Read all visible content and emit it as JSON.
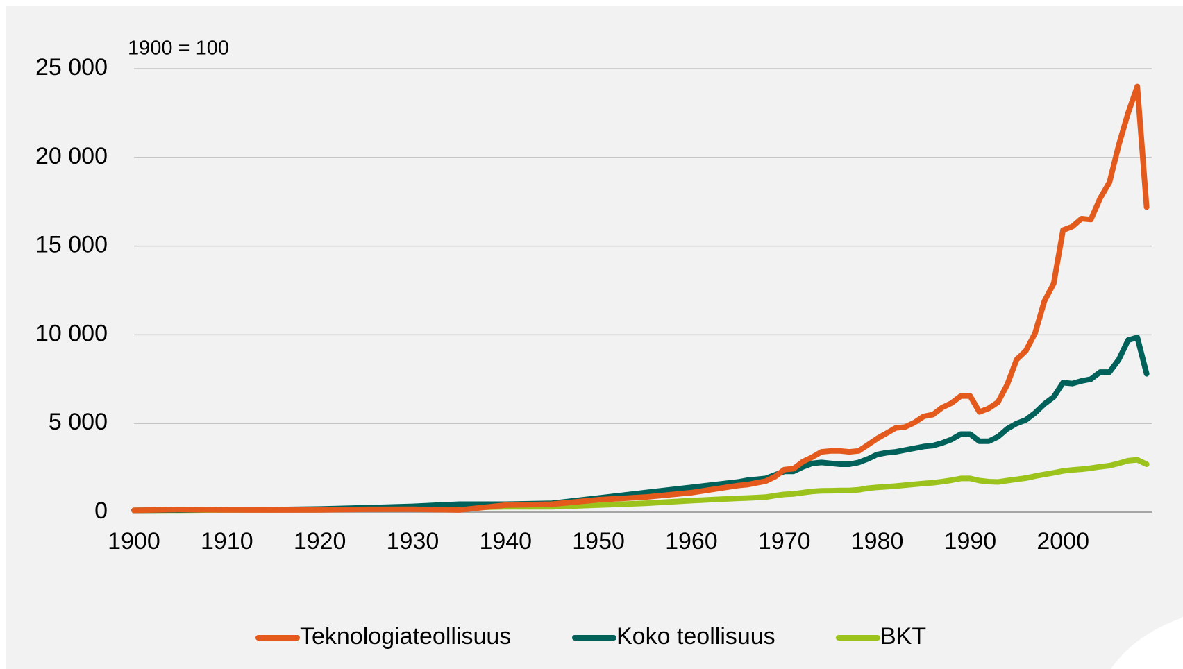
{
  "chart_data": {
    "type": "line",
    "annotation": "1900 = 100",
    "x": [
      1900,
      1905,
      1910,
      1915,
      1920,
      1925,
      1930,
      1935,
      1940,
      1945,
      1950,
      1955,
      1960,
      1965,
      1966,
      1967,
      1968,
      1969,
      1970,
      1971,
      1972,
      1973,
      1974,
      1975,
      1976,
      1977,
      1978,
      1979,
      1980,
      1981,
      1982,
      1983,
      1984,
      1985,
      1986,
      1987,
      1988,
      1989,
      1990,
      1991,
      1992,
      1993,
      1994,
      1995,
      1996,
      1997,
      1998,
      1999,
      2000,
      2001,
      2002,
      2003,
      2004,
      2005,
      2006,
      2007,
      2008,
      2009
    ],
    "series": [
      {
        "name": "Teknologiateollisuus",
        "color": "#e35a1c",
        "values": [
          100,
          150,
          130,
          120,
          130,
          160,
          170,
          120,
          400,
          450,
          700,
          850,
          1100,
          1500,
          1550,
          1650,
          1750,
          2000,
          2400,
          2450,
          2850,
          3100,
          3400,
          3450,
          3450,
          3400,
          3450,
          3800,
          4150,
          4450,
          4750,
          4800,
          5050,
          5400,
          5500,
          5900,
          6150,
          6550,
          6550,
          5650,
          5850,
          6200,
          7200,
          8600,
          9100,
          10100,
          11900,
          12900,
          15900,
          16100,
          16550,
          16500,
          17700,
          18600,
          20700,
          22500,
          24000,
          17200
        ]
      },
      {
        "name": "Koko teollisuus",
        "color": "#00605a",
        "values": [
          100,
          120,
          150,
          150,
          180,
          250,
          330,
          450,
          450,
          500,
          800,
          1100,
          1400,
          1700,
          1800,
          1850,
          1900,
          2100,
          2300,
          2300,
          2550,
          2750,
          2800,
          2750,
          2700,
          2700,
          2800,
          3000,
          3250,
          3350,
          3400,
          3500,
          3600,
          3700,
          3750,
          3900,
          4100,
          4400,
          4400,
          4000,
          4000,
          4250,
          4700,
          5000,
          5200,
          5600,
          6100,
          6500,
          7300,
          7250,
          7400,
          7500,
          7900,
          7900,
          8600,
          9700,
          9850,
          7800
        ]
      },
      {
        "name": "BKT",
        "color": "#9bc31c",
        "values": [
          100,
          110,
          130,
          140,
          150,
          180,
          200,
          250,
          300,
          300,
          400,
          500,
          650,
          780,
          800,
          820,
          850,
          930,
          1000,
          1030,
          1100,
          1170,
          1200,
          1210,
          1220,
          1220,
          1260,
          1350,
          1400,
          1430,
          1470,
          1520,
          1570,
          1620,
          1660,
          1720,
          1800,
          1900,
          1900,
          1780,
          1720,
          1700,
          1780,
          1850,
          1920,
          2030,
          2130,
          2220,
          2320,
          2380,
          2420,
          2480,
          2560,
          2620,
          2750,
          2900,
          2950,
          2700
        ]
      }
    ],
    "xlim": [
      1900,
      2010
    ],
    "xticks": [
      1900,
      1910,
      1920,
      1930,
      1940,
      1950,
      1960,
      1970,
      1980,
      1990,
      2000
    ],
    "ylim": [
      0,
      25000
    ],
    "yticks": [
      0,
      {
        "value": 5000,
        "label": "5 000"
      },
      {
        "value": 10000,
        "label": "10 000"
      },
      {
        "value": 15000,
        "label": "15 000"
      },
      {
        "value": 20000,
        "label": "20 000"
      },
      {
        "value": 25000,
        "label": "25 000"
      }
    ],
    "grid": true,
    "legend": "bottom"
  }
}
